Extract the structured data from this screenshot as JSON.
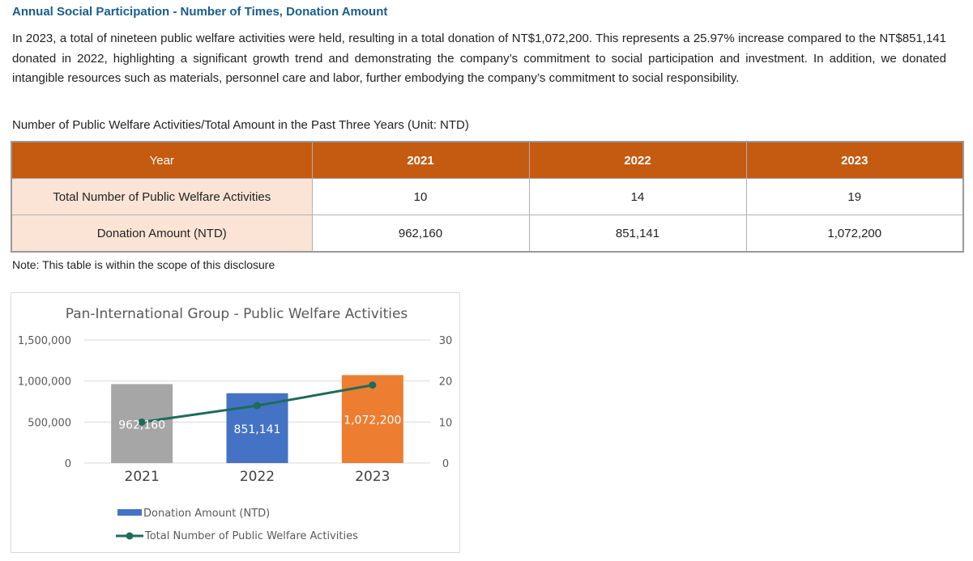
{
  "section_title": "Annual Social Participation - Number of Times, Donation Amount",
  "intro": "In 2023, a total of nineteen public welfare activities were held, resulting in a total donation of NT$1,072,200. This represents a 25.97% increase compared to the NT$851,141 donated in 2022, highlighting a significant growth trend and demonstrating the company’s commitment to social participation and investment. In addition, we donated intangible resources such as materials, personnel care and labor, further embodying the company’s commitment to social responsibility.",
  "table": {
    "caption": "Number of Public Welfare Activities/Total Amount in the Past Three Years (Unit: NTD)",
    "header": [
      "Year",
      "2021",
      "2022",
      "2023"
    ],
    "rows": [
      [
        "Total Number of Public Welfare Activities",
        "10",
        "14",
        "19"
      ],
      [
        "Donation Amount (NTD)",
        "962,160",
        "851,141",
        "1,072,200"
      ]
    ],
    "colors": {
      "header_bg": "#c55a11",
      "rowhead_bg": "#fbe4d5"
    }
  },
  "note": "Note: This table is within the scope of this disclosure",
  "chart_data": {
    "type": "bar",
    "title": "Pan-International Group - Public Welfare Activities",
    "categories": [
      "2021",
      "2022",
      "2023"
    ],
    "series": [
      {
        "name": "Donation Amount (NTD)",
        "type": "bar",
        "axis": "left",
        "values": [
          962160,
          851141,
          1072200
        ],
        "labels": [
          "962,160",
          "851,141",
          "1,072,200"
        ],
        "colors": [
          "#a6a6a6",
          "#4472c4",
          "#ed7d31"
        ]
      },
      {
        "name": "Total Number of Public Welfare Activities",
        "type": "line",
        "axis": "right",
        "values": [
          10,
          14,
          19
        ],
        "color": "#1e6b5a"
      }
    ],
    "y_left": {
      "ylim": [
        0,
        1500000
      ],
      "ticks": [
        0,
        500000,
        1000000,
        1500000
      ],
      "tick_labels": [
        "0",
        "500,000",
        "1,000,000",
        "1,500,000"
      ]
    },
    "y_right": {
      "ylim": [
        0,
        30
      ],
      "ticks": [
        0,
        10,
        20,
        30
      ],
      "tick_labels": [
        "0",
        "10",
        "20",
        "30"
      ]
    },
    "grid": true,
    "legend_position": "bottom"
  }
}
